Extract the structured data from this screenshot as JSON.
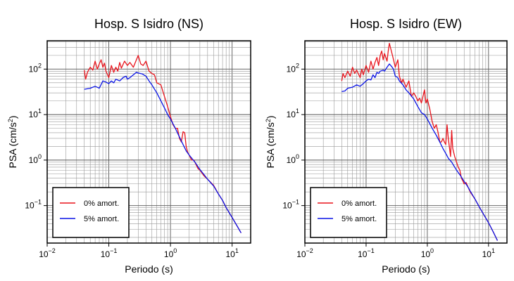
{
  "chart_data": [
    {
      "type": "line",
      "title": "Hosp. S Isidro (NS)",
      "xlabel": "Periodo (s)",
      "ylabel_main": "PSA (cm/s",
      "ylabel_sup": "2",
      "ylabel_close": ")",
      "xscale": "log",
      "yscale": "log",
      "xlim": [
        0.01,
        20
      ],
      "ylim": [
        0.015,
        420
      ],
      "grid": true,
      "legend_position": "bottom-left",
      "xticks": [
        {
          "value": 0.01,
          "base": "10",
          "exp": "−2"
        },
        {
          "value": 0.1,
          "base": "10",
          "exp": "−1"
        },
        {
          "value": 1,
          "base": "10",
          "exp": "0"
        },
        {
          "value": 10,
          "base": "10",
          "exp": "1"
        }
      ],
      "yticks": [
        {
          "value": 0.1,
          "base": "10",
          "exp": "−1"
        },
        {
          "value": 1,
          "base": "10",
          "exp": "0"
        },
        {
          "value": 10,
          "base": "10",
          "exp": "1"
        },
        {
          "value": 100,
          "base": "10",
          "exp": "2"
        }
      ],
      "series": [
        {
          "name": "0% amort.",
          "color": "#e8141c",
          "points": [
            [
              0.04,
              95
            ],
            [
              0.042,
              60
            ],
            [
              0.045,
              85
            ],
            [
              0.05,
              110
            ],
            [
              0.055,
              95
            ],
            [
              0.06,
              150
            ],
            [
              0.065,
              100
            ],
            [
              0.07,
              130
            ],
            [
              0.075,
              160
            ],
            [
              0.08,
              110
            ],
            [
              0.085,
              135
            ],
            [
              0.09,
              90
            ],
            [
              0.1,
              65
            ],
            [
              0.11,
              120
            ],
            [
              0.12,
              85
            ],
            [
              0.13,
              110
            ],
            [
              0.14,
              90
            ],
            [
              0.15,
              140
            ],
            [
              0.16,
              105
            ],
            [
              0.18,
              150
            ],
            [
              0.2,
              120
            ],
            [
              0.22,
              140
            ],
            [
              0.25,
              110
            ],
            [
              0.28,
              160
            ],
            [
              0.3,
              200
            ],
            [
              0.33,
              130
            ],
            [
              0.36,
              120
            ],
            [
              0.4,
              150
            ],
            [
              0.45,
              90
            ],
            [
              0.5,
              80
            ],
            [
              0.55,
              75
            ],
            [
              0.6,
              50
            ],
            [
              0.7,
              45
            ],
            [
              0.8,
              25
            ],
            [
              0.9,
              15
            ],
            [
              1.0,
              9
            ],
            [
              1.1,
              6
            ],
            [
              1.2,
              5
            ],
            [
              1.3,
              5
            ],
            [
              1.4,
              3
            ],
            [
              1.5,
              2.5
            ],
            [
              1.6,
              4.2
            ],
            [
              1.7,
              4
            ],
            [
              1.8,
              2
            ],
            [
              1.9,
              1.5
            ],
            [
              2.0,
              1.3
            ],
            [
              2.2,
              1.0
            ],
            [
              2.4,
              1.0
            ],
            [
              2.6,
              0.8
            ],
            [
              2.8,
              0.65
            ],
            [
              3.0,
              0.6
            ],
            [
              3.5,
              0.45
            ],
            [
              4.0,
              0.38
            ],
            [
              5.0,
              0.28
            ],
            [
              6.0,
              0.18
            ],
            [
              7.0,
              0.13
            ],
            [
              8.0,
              0.09
            ],
            [
              10,
              0.055
            ],
            [
              12,
              0.036
            ],
            [
              14,
              0.025
            ]
          ]
        },
        {
          "name": "5% amort.",
          "color": "#0a14e6",
          "points": [
            [
              0.04,
              36
            ],
            [
              0.05,
              38
            ],
            [
              0.06,
              42
            ],
            [
              0.07,
              38
            ],
            [
              0.08,
              55
            ],
            [
              0.09,
              52
            ],
            [
              0.1,
              48
            ],
            [
              0.11,
              55
            ],
            [
              0.12,
              50
            ],
            [
              0.13,
              60
            ],
            [
              0.15,
              55
            ],
            [
              0.17,
              65
            ],
            [
              0.19,
              70
            ],
            [
              0.2,
              60
            ],
            [
              0.22,
              65
            ],
            [
              0.25,
              75
            ],
            [
              0.28,
              85
            ],
            [
              0.3,
              82
            ],
            [
              0.35,
              78
            ],
            [
              0.4,
              70
            ],
            [
              0.45,
              55
            ],
            [
              0.5,
              45
            ],
            [
              0.6,
              30
            ],
            [
              0.7,
              20
            ],
            [
              0.8,
              14
            ],
            [
              0.9,
              10
            ],
            [
              1.0,
              8
            ],
            [
              1.2,
              5
            ],
            [
              1.4,
              3.2
            ],
            [
              1.6,
              2.2
            ],
            [
              1.8,
              1.6
            ],
            [
              2.0,
              1.3
            ],
            [
              2.5,
              0.9
            ],
            [
              3.0,
              0.62
            ],
            [
              3.5,
              0.48
            ],
            [
              4.0,
              0.38
            ],
            [
              5.0,
              0.27
            ],
            [
              6.0,
              0.18
            ],
            [
              7.0,
              0.13
            ],
            [
              8.0,
              0.09
            ],
            [
              10,
              0.055
            ],
            [
              12,
              0.036
            ],
            [
              14,
              0.025
            ]
          ]
        }
      ]
    },
    {
      "type": "line",
      "title": "Hosp. S Isidro (EW)",
      "xlabel": "Periodo (s)",
      "ylabel_main": "PSA (cm/s",
      "ylabel_sup": "2",
      "ylabel_close": ")",
      "xscale": "log",
      "yscale": "log",
      "xlim": [
        0.01,
        20
      ],
      "ylim": [
        0.015,
        420
      ],
      "grid": true,
      "legend_position": "bottom-left",
      "xticks": [
        {
          "value": 0.01,
          "base": "10",
          "exp": "−2"
        },
        {
          "value": 0.1,
          "base": "10",
          "exp": "−1"
        },
        {
          "value": 1,
          "base": "10",
          "exp": "0"
        },
        {
          "value": 10,
          "base": "10",
          "exp": "1"
        }
      ],
      "yticks": [
        {
          "value": 0.1,
          "base": "10",
          "exp": "−1"
        },
        {
          "value": 1,
          "base": "10",
          "exp": "0"
        },
        {
          "value": 10,
          "base": "10",
          "exp": "1"
        },
        {
          "value": 100,
          "base": "10",
          "exp": "2"
        }
      ],
      "series": [
        {
          "name": "0% amort.",
          "color": "#e8141c",
          "points": [
            [
              0.04,
              55
            ],
            [
              0.042,
              80
            ],
            [
              0.045,
              65
            ],
            [
              0.05,
              90
            ],
            [
              0.055,
              70
            ],
            [
              0.06,
              110
            ],
            [
              0.065,
              80
            ],
            [
              0.07,
              95
            ],
            [
              0.08,
              65
            ],
            [
              0.085,
              100
            ],
            [
              0.09,
              75
            ],
            [
              0.1,
              120
            ],
            [
              0.11,
              85
            ],
            [
              0.12,
              150
            ],
            [
              0.13,
              100
            ],
            [
              0.14,
              140
            ],
            [
              0.15,
              180
            ],
            [
              0.16,
              120
            ],
            [
              0.17,
              200
            ],
            [
              0.18,
              250
            ],
            [
              0.19,
              160
            ],
            [
              0.2,
              220
            ],
            [
              0.22,
              150
            ],
            [
              0.23,
              250
            ],
            [
              0.24,
              370
            ],
            [
              0.25,
              300
            ],
            [
              0.27,
              200
            ],
            [
              0.3,
              110
            ],
            [
              0.33,
              160
            ],
            [
              0.35,
              70
            ],
            [
              0.38,
              50
            ],
            [
              0.4,
              60
            ],
            [
              0.45,
              40
            ],
            [
              0.5,
              55
            ],
            [
              0.55,
              25
            ],
            [
              0.6,
              30
            ],
            [
              0.65,
              25
            ],
            [
              0.7,
              20
            ],
            [
              0.75,
              23
            ],
            [
              0.8,
              18
            ],
            [
              0.9,
              35
            ],
            [
              0.95,
              18
            ],
            [
              1.0,
              22
            ],
            [
              1.1,
              13
            ],
            [
              1.2,
              7
            ],
            [
              1.3,
              5
            ],
            [
              1.4,
              6
            ],
            [
              1.5,
              4
            ],
            [
              1.6,
              2.5
            ],
            [
              1.7,
              2.5
            ],
            [
              1.8,
              3
            ],
            [
              1.9,
              2.5
            ],
            [
              2.0,
              2.2
            ],
            [
              2.1,
              6
            ],
            [
              2.2,
              3
            ],
            [
              2.4,
              1.2
            ],
            [
              2.5,
              4.5
            ],
            [
              2.6,
              1.8
            ],
            [
              2.8,
              1.2
            ],
            [
              3.0,
              0.9
            ],
            [
              3.2,
              0.7
            ],
            [
              3.4,
              0.6
            ],
            [
              3.6,
              0.4
            ],
            [
              3.8,
              0.35
            ],
            [
              4.0,
              0.3
            ],
            [
              4.3,
              0.32
            ],
            [
              4.6,
              0.26
            ],
            [
              5.0,
              0.2
            ],
            [
              6.0,
              0.14
            ],
            [
              7.0,
              0.095
            ],
            [
              8.0,
              0.07
            ],
            [
              10,
              0.042
            ],
            [
              12,
              0.026
            ],
            [
              14,
              0.017
            ]
          ]
        },
        {
          "name": "5% amort.",
          "color": "#0a14e6",
          "points": [
            [
              0.04,
              32
            ],
            [
              0.045,
              33
            ],
            [
              0.05,
              38
            ],
            [
              0.06,
              40
            ],
            [
              0.07,
              45
            ],
            [
              0.08,
              42
            ],
            [
              0.09,
              48
            ],
            [
              0.1,
              55
            ],
            [
              0.11,
              60
            ],
            [
              0.12,
              58
            ],
            [
              0.13,
              75
            ],
            [
              0.14,
              65
            ],
            [
              0.15,
              85
            ],
            [
              0.16,
              80
            ],
            [
              0.17,
              90
            ],
            [
              0.19,
              95
            ],
            [
              0.2,
              90
            ],
            [
              0.22,
              110
            ],
            [
              0.24,
              130
            ],
            [
              0.26,
              115
            ],
            [
              0.28,
              100
            ],
            [
              0.3,
              70
            ],
            [
              0.33,
              65
            ],
            [
              0.35,
              55
            ],
            [
              0.4,
              45
            ],
            [
              0.45,
              35
            ],
            [
              0.5,
              30
            ],
            [
              0.6,
              22
            ],
            [
              0.7,
              15
            ],
            [
              0.8,
              11
            ],
            [
              0.9,
              10
            ],
            [
              1.0,
              8
            ],
            [
              1.2,
              5
            ],
            [
              1.4,
              3.5
            ],
            [
              1.6,
              2.5
            ],
            [
              1.8,
              1.8
            ],
            [
              2.0,
              1.4
            ],
            [
              2.2,
              1.1
            ],
            [
              2.5,
              0.9
            ],
            [
              2.8,
              0.7
            ],
            [
              3.0,
              0.6
            ],
            [
              3.5,
              0.45
            ],
            [
              4.0,
              0.34
            ],
            [
              4.5,
              0.27
            ],
            [
              5.0,
              0.21
            ],
            [
              6.0,
              0.14
            ],
            [
              7.0,
              0.095
            ],
            [
              8.0,
              0.07
            ],
            [
              10,
              0.042
            ],
            [
              12,
              0.026
            ],
            [
              14,
              0.017
            ]
          ]
        }
      ]
    }
  ]
}
